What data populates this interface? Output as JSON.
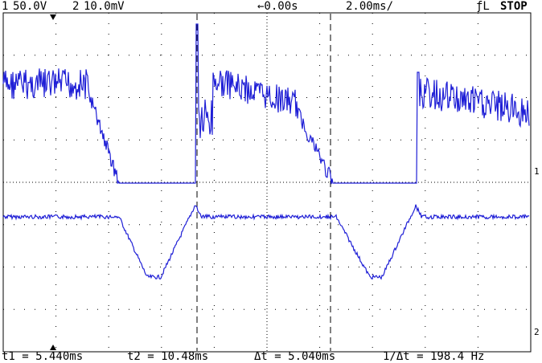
{
  "header": {
    "ch1_label": "1",
    "ch1_scale": "50.0V",
    "ch2_label": "2",
    "ch2_scale": "10.0mV",
    "trigger_pos": "←0.00s",
    "timebase": "2.00ms/",
    "trigger": "ƒL",
    "status": "STOP"
  },
  "markers": {
    "ch1": "1",
    "ch2": "2"
  },
  "cursors": {
    "t1": "t1 = 5.440ms",
    "t2": "t2 = 10.48ms",
    "dt": "Δt = 5.040ms",
    "inv_dt": "1/Δt = 198.4 Hz"
  }
}
